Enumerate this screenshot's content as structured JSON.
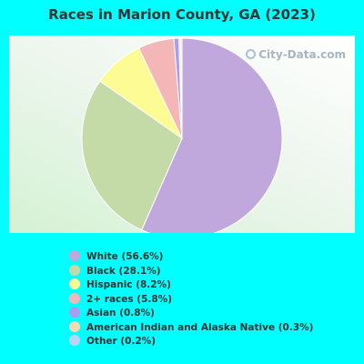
{
  "chart_data": {
    "type": "pie",
    "title": "Races in Marion County, GA (2023)",
    "watermark": "City-Data.com",
    "legend_position": "bottom-left",
    "series": [
      {
        "name": "White",
        "label": "White (56.6%)",
        "value": 56.6,
        "color": "#c0a8dc"
      },
      {
        "name": "Black",
        "label": "Black (28.1%)",
        "value": 28.1,
        "color": "#c4dba8"
      },
      {
        "name": "Hispanic",
        "label": "Hispanic (8.2%)",
        "value": 8.2,
        "color": "#fdfc94"
      },
      {
        "name": "2+ races",
        "label": "2+ races (5.8%)",
        "value": 5.8,
        "color": "#f4b6b6"
      },
      {
        "name": "Asian",
        "label": "Asian (0.8%)",
        "value": 0.8,
        "color": "#a89ef0"
      },
      {
        "name": "American Indian and Alaska Native",
        "label": "American Indian and Alaska Native (0.3%)",
        "value": 0.3,
        "color": "#f2dcb4"
      },
      {
        "name": "Other",
        "label": "Other (0.2%)",
        "value": 0.2,
        "color": "#b8d4f6"
      }
    ]
  }
}
